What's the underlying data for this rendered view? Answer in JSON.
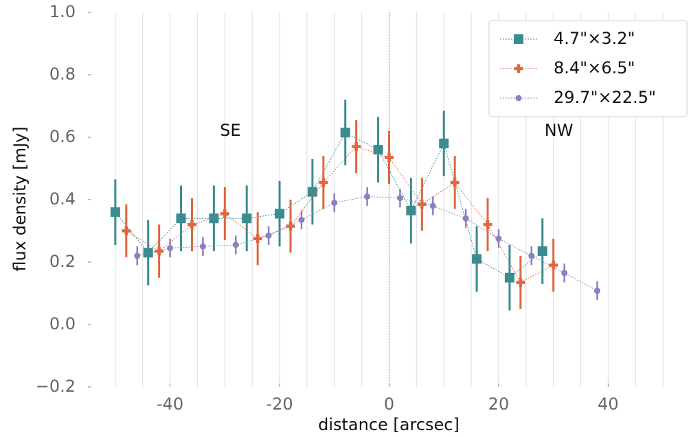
{
  "chart_data": {
    "type": "errorbar",
    "xlabel": "distance [arcsec]",
    "ylabel": "flux density [mJy]",
    "xlim": [
      -55,
      55
    ],
    "ylim": [
      -0.2,
      1.0
    ],
    "xticks": [
      -40,
      -20,
      0,
      20,
      40
    ],
    "xgrid": [
      -50,
      -45,
      -40,
      -35,
      -30,
      -25,
      -20,
      -15,
      -10,
      -5,
      0,
      5,
      10,
      15,
      20,
      25,
      30,
      35,
      40,
      45,
      50
    ],
    "yticks": [
      {
        "value": -0.2,
        "label": "−0.2"
      },
      {
        "value": 0.0,
        "label": "0.0"
      },
      0.2,
      0.4,
      0.6,
      0.8,
      {
        "value": 1.0,
        "label": "1.0"
      }
    ],
    "vline": 0,
    "vline_color": "#e06060",
    "legend": "upper right",
    "annotations": [
      {
        "text": "SE",
        "x": -29,
        "y": 0.62
      },
      {
        "text": "NW",
        "x": 31,
        "y": 0.62
      }
    ],
    "series": [
      {
        "name": "4.7\"×3.2\"",
        "color": "#3a8c90",
        "marker": "square",
        "x": [
          -50,
          -44,
          -38,
          -32,
          -26,
          -20,
          -14,
          -8,
          -2,
          4,
          10,
          16,
          22,
          28
        ],
        "values": [
          0.36,
          0.23,
          0.34,
          0.34,
          0.34,
          0.355,
          0.425,
          0.615,
          0.56,
          0.365,
          0.58,
          0.21,
          0.15,
          0.235
        ],
        "errors": [
          0.105,
          0.105,
          0.105,
          0.105,
          0.105,
          0.105,
          0.105,
          0.105,
          0.105,
          0.105,
          0.105,
          0.105,
          0.105,
          0.105
        ]
      },
      {
        "name": "8.4\"×6.5\"",
        "color": "#e0663f",
        "marker": "plus",
        "x": [
          -48,
          -42,
          -36,
          -30,
          -24,
          -18,
          -12,
          -6,
          0,
          6,
          12,
          18,
          24,
          30
        ],
        "values": [
          0.3,
          0.235,
          0.32,
          0.355,
          0.275,
          0.315,
          0.455,
          0.57,
          0.535,
          0.385,
          0.455,
          0.32,
          0.135,
          0.19
        ],
        "errors": [
          0.085,
          0.085,
          0.085,
          0.085,
          0.085,
          0.085,
          0.085,
          0.085,
          0.085,
          0.085,
          0.085,
          0.085,
          0.085,
          0.085
        ]
      },
      {
        "name": "29.7\"×22.5\"",
        "color": "#8c80c0",
        "marker": "circle",
        "x": [
          -46,
          -40,
          -34,
          -28,
          -22,
          -16,
          -10,
          -4,
          2,
          8,
          14,
          20,
          26,
          32,
          38
        ],
        "values": [
          0.22,
          0.245,
          0.25,
          0.255,
          0.285,
          0.335,
          0.39,
          0.41,
          0.405,
          0.38,
          0.34,
          0.275,
          0.22,
          0.165,
          0.108
        ],
        "errors": [
          0.03,
          0.03,
          0.03,
          0.03,
          0.03,
          0.03,
          0.03,
          0.03,
          0.03,
          0.03,
          0.03,
          0.03,
          0.03,
          0.03,
          0.03
        ]
      }
    ]
  }
}
